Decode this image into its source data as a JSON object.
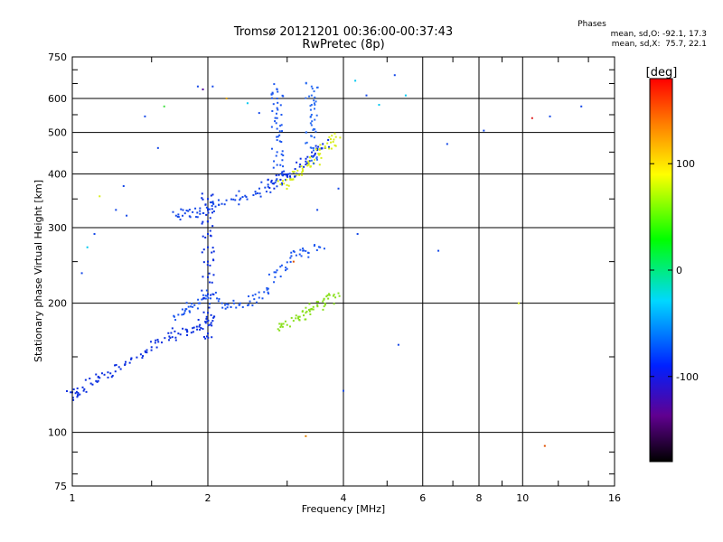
{
  "chart_data": {
    "type": "scatter",
    "title": "Tromsø 20121201 00:36:00-00:37:43",
    "subtitle": "RwPretec (8p)",
    "xlabel": "Frequency [MHz]",
    "ylabel": "Stationary phase Virtual Height [km]",
    "x_scale": "log",
    "y_scale": "log",
    "xlim": [
      1,
      16
    ],
    "ylim": [
      75,
      750
    ],
    "x_ticks": [
      1,
      2,
      4,
      6,
      8,
      10,
      16
    ],
    "y_ticks": [
      75,
      100,
      200,
      300,
      400,
      500,
      600,
      750
    ],
    "grid": true,
    "phase_stats": {
      "heading": "Phases",
      "line_o": "mean, sd,O: -92.1, 17.3",
      "line_x": "mean, sd,X:  75.7, 22.1"
    },
    "colorbar": {
      "label": "[deg]",
      "range": [
        -180,
        180
      ],
      "ticks": [
        100,
        0,
        -100
      ]
    },
    "traces": [
      {
        "name": "",
        "color": "#0a2ee0",
        "phase": -95,
        "x": [
          1.0,
          1.03,
          1.06,
          1.1,
          1.15,
          1.2,
          1.27,
          1.35,
          1.42,
          1.5,
          1.58,
          1.65,
          1.72,
          1.8,
          1.85,
          1.92,
          1.98,
          2.05
        ],
        "y": [
          124,
          122,
          125,
          130,
          134,
          138,
          142,
          148,
          152,
          158,
          162,
          166,
          170,
          172,
          175,
          178,
          180,
          182
        ]
      },
      {
        "name": "",
        "color": "#1b56f0",
        "phase": -90,
        "x": [
          1.72,
          1.78,
          1.85,
          1.92,
          1.98,
          2.05,
          2.15,
          2.25,
          2.35,
          2.48,
          2.6,
          2.72,
          2.82,
          2.92,
          3.05,
          3.2,
          3.35,
          3.55
        ],
        "y": [
          188,
          192,
          196,
          200,
          205,
          210,
          200,
          196,
          198,
          202,
          206,
          212,
          230,
          245,
          255,
          260,
          262,
          270
        ]
      },
      {
        "name": "",
        "color": "#8be01f",
        "phase": 70,
        "x": [
          2.9,
          3.0,
          3.1,
          3.2,
          3.3,
          3.4,
          3.5,
          3.6,
          3.7,
          3.8
        ],
        "y": [
          176,
          178,
          182,
          186,
          190,
          194,
          198,
          202,
          205,
          208
        ]
      },
      {
        "name": "",
        "color": "#1448e8",
        "phase": -100,
        "x": [
          1.72,
          1.78,
          1.85,
          1.92,
          2.0,
          2.08,
          2.18,
          2.3,
          2.42,
          2.55,
          2.68,
          2.8,
          2.9,
          3.0
        ],
        "y": [
          322,
          324,
          326,
          328,
          332,
          336,
          340,
          348,
          356,
          364,
          372,
          380,
          388,
          396
        ]
      },
      {
        "name": "",
        "color": "#0a2ee0",
        "phase": -95,
        "x": [
          2.8,
          2.9,
          3.0,
          3.1,
          3.2,
          3.3,
          3.4,
          3.5,
          3.6
        ],
        "y": [
          380,
          388,
          396,
          404,
          416,
          428,
          440,
          455,
          470
        ]
      },
      {
        "name": "",
        "color": "#d8ee1a",
        "phase": 95,
        "x": [
          2.95,
          3.05,
          3.15,
          3.25,
          3.35,
          3.45,
          3.55,
          3.65,
          3.75,
          3.85
        ],
        "y": [
          380,
          388,
          398,
          408,
          420,
          432,
          446,
          460,
          474,
          488
        ]
      },
      {
        "name": "",
        "color": "#0a2ee0",
        "phase": -95,
        "x": [
          2.0,
          2.0,
          2.0,
          2.0,
          2.0,
          2.0,
          2.0,
          2.0,
          2.0,
          2.0
        ],
        "y": [
          170,
          190,
          210,
          230,
          250,
          270,
          290,
          310,
          330,
          350
        ]
      },
      {
        "name": "",
        "color": "#1b56f0",
        "phase": -90,
        "x": [
          2.85,
          2.85,
          2.85,
          2.85,
          2.85,
          2.85,
          2.85,
          2.85
        ],
        "y": [
          420,
          450,
          480,
          510,
          540,
          570,
          600,
          630
        ]
      },
      {
        "name": "",
        "color": "#2a6cf2",
        "phase": -85,
        "x": [
          3.4,
          3.4,
          3.4,
          3.4,
          3.4,
          3.4,
          3.4,
          3.4
        ],
        "y": [
          430,
          460,
          490,
          520,
          550,
          580,
          610,
          640
        ]
      }
    ],
    "scattered_points": {
      "x": [
        1.05,
        1.08,
        1.12,
        1.25,
        1.32,
        1.45,
        1.6,
        1.9,
        1.95,
        2.05,
        2.2,
        2.45,
        2.6,
        3.1,
        3.5,
        3.9,
        4.25,
        4.3,
        4.5,
        4.8,
        5.2,
        5.5,
        6.5,
        6.8,
        8.2,
        9.8,
        10.5,
        11.2,
        11.5,
        13.5,
        1.15,
        1.3,
        1.55,
        1.7,
        3.3,
        4.0,
        5.3
      ],
      "y": [
        235,
        270,
        290,
        330,
        320,
        545,
        575,
        640,
        630,
        640,
        600,
        585,
        555,
        250,
        330,
        370,
        660,
        290,
        610,
        580,
        680,
        610,
        265,
        470,
        505,
        200,
        540,
        93,
        545,
        575,
        355,
        375,
        460,
        320,
        98,
        125,
        160
      ],
      "colors": [
        "#1448e8",
        "#00c8f0",
        "#1448e8",
        "#1448e8",
        "#1448e8",
        "#1448e8",
        "#40e040",
        "#1448e8",
        "#5000a0",
        "#1448e8",
        "#e0a000",
        "#00c8f0",
        "#1448e8",
        "#e05000",
        "#1448e8",
        "#1448e8",
        "#00c8f0",
        "#1448e8",
        "#1448e8",
        "#00c8f0",
        "#1448e8",
        "#00c8f0",
        "#1448e8",
        "#1448e8",
        "#1448e8",
        "#d8ee1a",
        "#e02020",
        "#e05000",
        "#1448e8",
        "#1448e8",
        "#d8ee1a",
        "#1448e8",
        "#1448e8",
        "#1448e8",
        "#e08000",
        "#1448e8",
        "#1448e8"
      ]
    }
  }
}
